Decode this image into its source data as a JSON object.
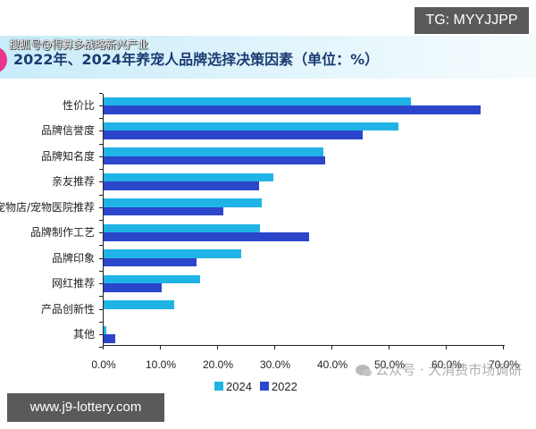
{
  "overlay": {
    "tg_badge": "TG: MYYJJPP",
    "site_badge": "www.j9-lottery.com",
    "banner_watermark": "搜狐号@得算多战略新兴产业",
    "wechat_watermark": "公众号 · 大消费市场调研"
  },
  "colors": {
    "series_2024": "#1fb3e6",
    "series_2022": "#2b45cb",
    "title": "#1b3c72"
  },
  "chart_data": {
    "type": "bar",
    "orientation": "horizontal",
    "title": "2022年、2024年养宠人品牌选择决策因素（单位：%）",
    "xlabel": "",
    "ylabel": "",
    "xlim": [
      0,
      70
    ],
    "x_ticks": [
      "0.0%",
      "10.0%",
      "20.0%",
      "30.0%",
      "40.0%",
      "50.0%",
      "60.0%",
      "70.0%"
    ],
    "grid": false,
    "legend_position": "bottom",
    "categories": [
      "性价比",
      "品牌信誉度",
      "品牌知名度",
      "亲友推荐",
      "宠物店/宠物医院推荐",
      "品牌制作工艺",
      "品牌印象",
      "网红推荐",
      "产品创新性",
      "其他"
    ],
    "series": [
      {
        "name": "2024",
        "color": "#1fb3e6",
        "values": [
          53.8,
          51.6,
          38.5,
          29.7,
          27.7,
          27.3,
          24.1,
          16.8,
          12.4,
          0.4
        ]
      },
      {
        "name": "2022",
        "color": "#2b45cb",
        "values": [
          65.9,
          45.3,
          38.8,
          27.2,
          21.0,
          36.0,
          16.3,
          10.2,
          0.0,
          2.0
        ]
      }
    ]
  }
}
